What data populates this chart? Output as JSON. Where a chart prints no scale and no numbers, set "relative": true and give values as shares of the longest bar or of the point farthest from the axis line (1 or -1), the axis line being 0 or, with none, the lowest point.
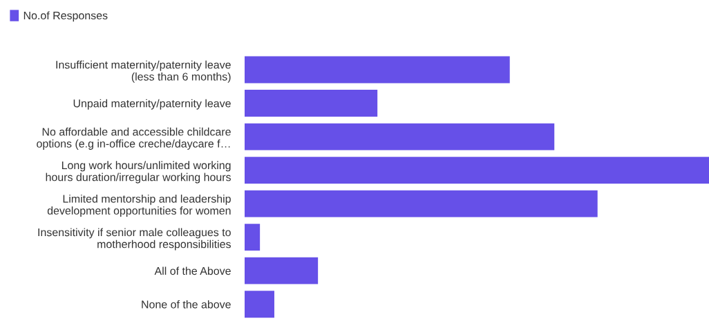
{
  "chart_data": {
    "type": "bar",
    "orientation": "horizontal",
    "relative": true,
    "legend": "top left",
    "categories": [
      "Insufficient maternity/paternity leave\n(less than 6 months)",
      "Unpaid maternity/paternity leave",
      "No affordable and accessible childcare\noptions (e.g in-office creche/daycare f…",
      "Long work hours/unlimited working\nhours duration/irregular working hours",
      "Limited mentorship and leadership\ndevelopment opportunities for women",
      "Insensitivity if senior male colleagues to\nmotherhood responsibilities",
      "All of the Above",
      "None of the above"
    ],
    "series": [
      {
        "name": "No.of Responses",
        "color": "#6650e8",
        "values": [
          0.571,
          0.286,
          0.667,
          1,
          0.76,
          0.033,
          0.158,
          0.064
        ]
      }
    ]
  }
}
